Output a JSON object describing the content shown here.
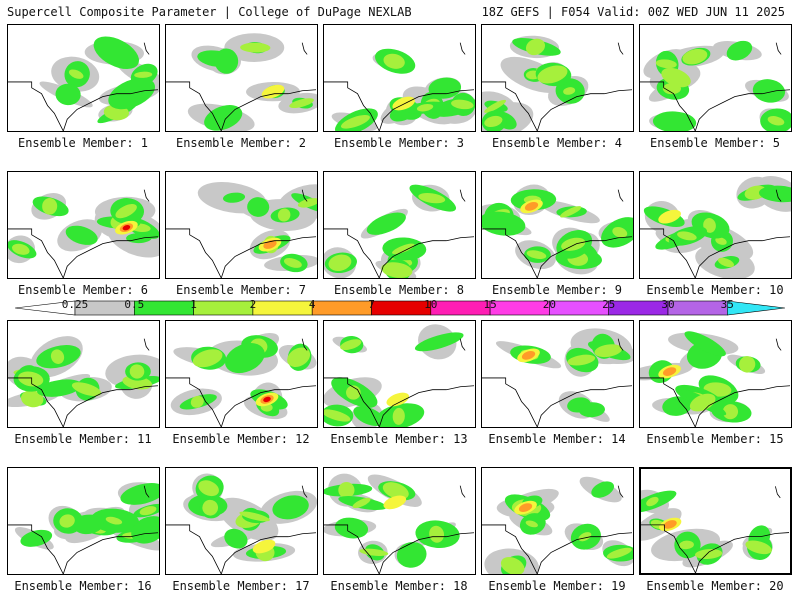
{
  "header": {
    "title": "Supercell Composite Parameter | College of DuPage NEXLAB",
    "run_info": "18Z GEFS | F054 Valid: 00Z WED JUN 11 2025"
  },
  "members": [
    {
      "label": "Ensemble Member: 1",
      "level": 1
    },
    {
      "label": "Ensemble Member: 2",
      "level": 2
    },
    {
      "label": "Ensemble Member: 3",
      "level": 2
    },
    {
      "label": "Ensemble Member: 4",
      "level": 1
    },
    {
      "label": "Ensemble Member: 5",
      "level": 1
    },
    {
      "label": "Ensemble Member: 6",
      "level": 4
    },
    {
      "label": "Ensemble Member: 7",
      "level": 3
    },
    {
      "label": "Ensemble Member: 8",
      "level": 1
    },
    {
      "label": "Ensemble Member: 9",
      "level": 3
    },
    {
      "label": "Ensemble Member: 10",
      "level": 2
    },
    {
      "label": "Ensemble Member: 11",
      "level": 1
    },
    {
      "label": "Ensemble Member: 12",
      "level": 4
    },
    {
      "label": "Ensemble Member: 13",
      "level": 2
    },
    {
      "label": "Ensemble Member: 14",
      "level": 3
    },
    {
      "label": "Ensemble Member: 15",
      "level": 3
    },
    {
      "label": "Ensemble Member: 16",
      "level": 1
    },
    {
      "label": "Ensemble Member: 17",
      "level": 2
    },
    {
      "label": "Ensemble Member: 18",
      "level": 2
    },
    {
      "label": "Ensemble Member: 19",
      "level": 3
    },
    {
      "label": "Ensemble Member: 20",
      "level": 3
    }
  ],
  "selected_member": 20,
  "colorbar": {
    "labels": [
      "0.25",
      "0.5",
      "1",
      "2",
      "4",
      "7",
      "10",
      "15",
      "20",
      "25",
      "30",
      "35"
    ],
    "colors": [
      "#c8c8c8",
      "#33e633",
      "#a6f03c",
      "#f5f53c",
      "#ff9b28",
      "#e60000",
      "#ff1eb4",
      "#ff3ce6",
      "#e650ff",
      "#9b28e6",
      "#b464e6",
      "#32e6f5"
    ]
  }
}
